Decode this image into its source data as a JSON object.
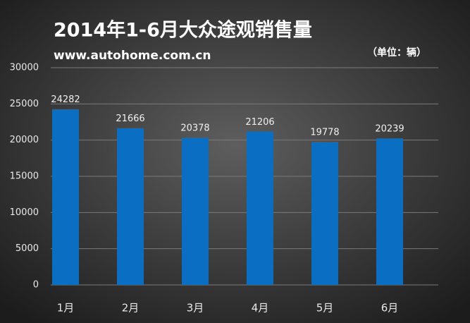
{
  "chart_data": {
    "type": "bar",
    "title": "2014年1-6月大众途观销售量",
    "subtitle": "www.autohome.com.cn",
    "unit_note": "（单位：辆）",
    "categories": [
      "1月",
      "2月",
      "3月",
      "4月",
      "5月",
      "6月"
    ],
    "values": [
      24282,
      21666,
      20378,
      21206,
      19778,
      20239
    ],
    "color": "#0a6fc2",
    "ylim": [
      0,
      30000
    ],
    "yticks": [
      0,
      5000,
      10000,
      15000,
      20000,
      25000,
      30000
    ],
    "grid": true
  }
}
